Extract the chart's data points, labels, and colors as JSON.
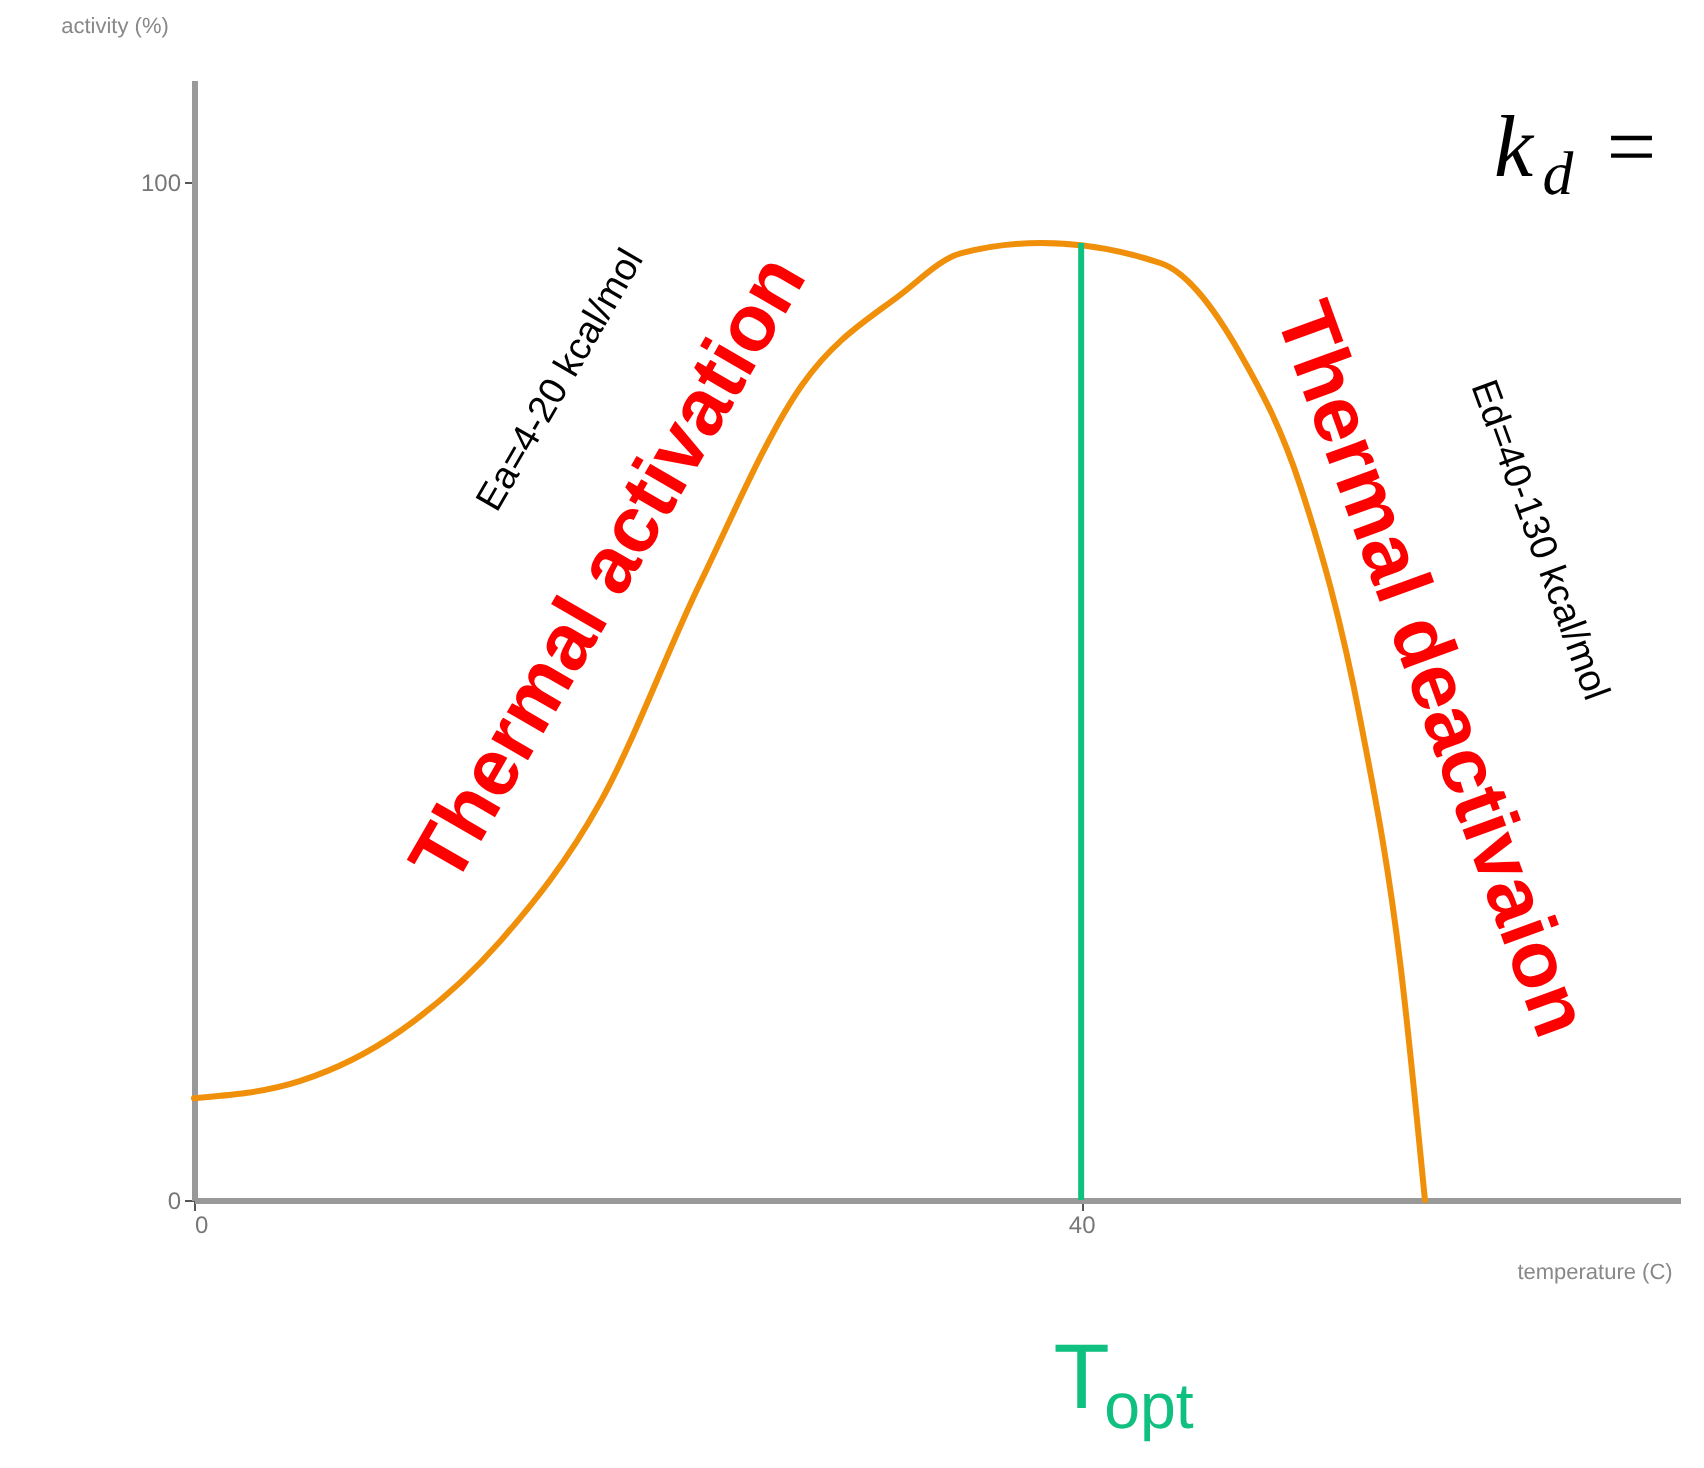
{
  "chart_data": {
    "type": "line",
    "xlabel": "temperature (C)",
    "ylabel": "activity (%)",
    "x": [
      0,
      4.8,
      9.3,
      13.8,
      18.3,
      22.8,
      27.4,
      31.9,
      34.6,
      38.2,
      43.6,
      47.2,
      49.9,
      52.6,
      54.4,
      55.5
    ],
    "series": [
      {
        "color": "#f0900a",
        "values": [
          10,
          11.7,
          16.6,
          25.4,
          39,
          60.5,
          80,
          89,
          93,
          94,
          92,
          83,
          70,
          47,
          23,
          0
        ]
      }
    ],
    "xlim": [
      0,
      67
    ],
    "ylim": [
      0,
      110
    ],
    "xticks": [
      0,
      40
    ],
    "yticks": [
      0,
      100
    ],
    "grid": false,
    "marker": "none",
    "line_style": "solid",
    "ref_lines": [
      {
        "axis": "x",
        "value": 40,
        "label": "T$_{opt}$",
        "color": "#10c080"
      }
    ],
    "annotations": [
      "Ea=4-20 kcal/mol",
      "Thermal activation",
      "Thermal deactivaion",
      "Ed=40-130 kcal/mol",
      "k$_{d}$ ="
    ]
  }
}
